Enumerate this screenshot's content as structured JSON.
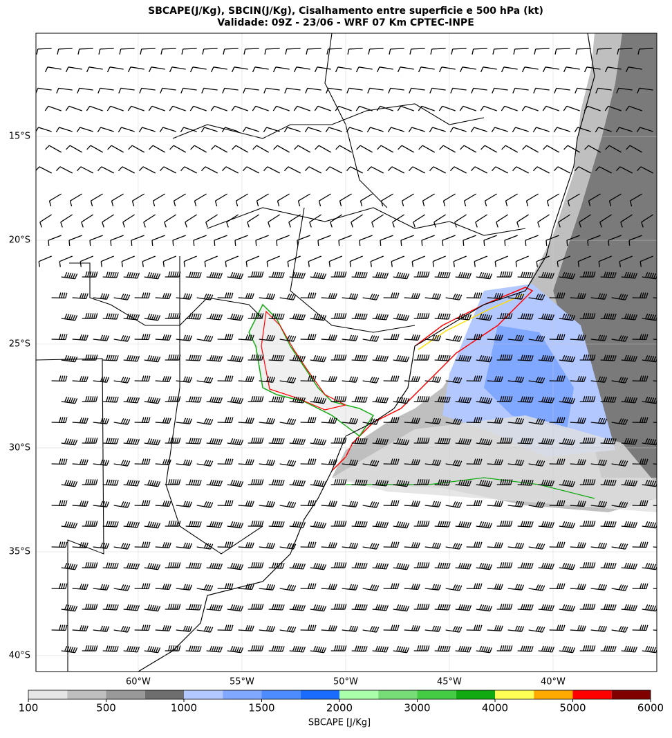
{
  "map": {
    "title": "SBCAPE(J/Kg), SBCIN(J/Kg), Cisalhamento entre superficie e 500 hPa (kt)",
    "subtitle": "Validade: 09Z - 23/06 - WRF 07 Km CPTEC-INPE",
    "xlim": [
      -64.93,
      -35.0
    ],
    "ylim": [
      -40.77,
      -10.03
    ],
    "xticks": [
      {
        "value": -60,
        "label": "60°W"
      },
      {
        "value": -55,
        "label": "55°W"
      },
      {
        "value": -50,
        "label": "50°W"
      },
      {
        "value": -45,
        "label": "45°W"
      },
      {
        "value": -40,
        "label": "40°W"
      }
    ],
    "yticks": [
      {
        "value": -15,
        "label": "15°S"
      },
      {
        "value": -20,
        "label": "20°S"
      },
      {
        "value": -25,
        "label": "25°S"
      },
      {
        "value": -30,
        "label": "30°S"
      },
      {
        "value": -35,
        "label": "35°S"
      },
      {
        "value": -40,
        "label": "40°S"
      }
    ],
    "grid": true,
    "colorbar": {
      "label": "SBCAPE [J/Kg]",
      "levels": [
        100,
        250,
        500,
        750,
        1000,
        1250,
        1500,
        1750,
        2000,
        2500,
        3000,
        3500,
        4000,
        4500,
        5000,
        5500,
        6000
      ],
      "colors": [
        "#e6e6e6",
        "#bfbfbf",
        "#999999",
        "#6e6e6e",
        "#b3c8ff",
        "#80a8ff",
        "#4d8cff",
        "#1a6cff",
        "#aaffaa",
        "#77dd77",
        "#44cc44",
        "#11aa11",
        "#ffff55",
        "#ffaa00",
        "#ff0000",
        "#800000"
      ],
      "ticks": [
        100,
        500,
        1000,
        1500,
        2000,
        3000,
        4000,
        5000,
        6000
      ]
    }
  }
}
